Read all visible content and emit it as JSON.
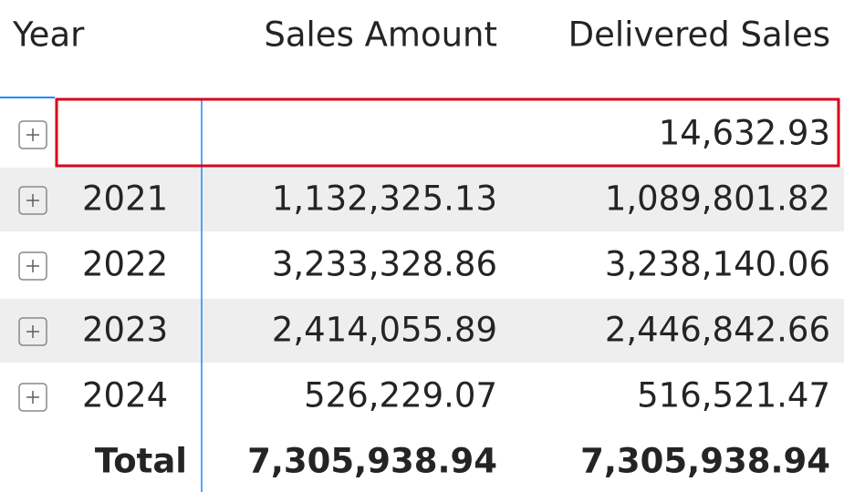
{
  "header": {
    "year": "Year",
    "sales": "Sales Amount",
    "delivered": "Delivered Sales"
  },
  "rows": [
    {
      "delivered": "14,632.93"
    },
    {
      "year": "2021",
      "sales": "1,132,325.13",
      "delivered": "1,089,801.82"
    },
    {
      "year": "2022",
      "sales": "3,233,328.86",
      "delivered": "3,238,140.06"
    },
    {
      "year": "2023",
      "sales": "2,414,055.89",
      "delivered": "2,446,842.66"
    },
    {
      "year": "2024",
      "sales": "526,229.07",
      "delivered": "516,521.47"
    }
  ],
  "total": {
    "year": "Total",
    "sales": "7,305,938.94",
    "delivered": "7,305,938.94"
  }
}
